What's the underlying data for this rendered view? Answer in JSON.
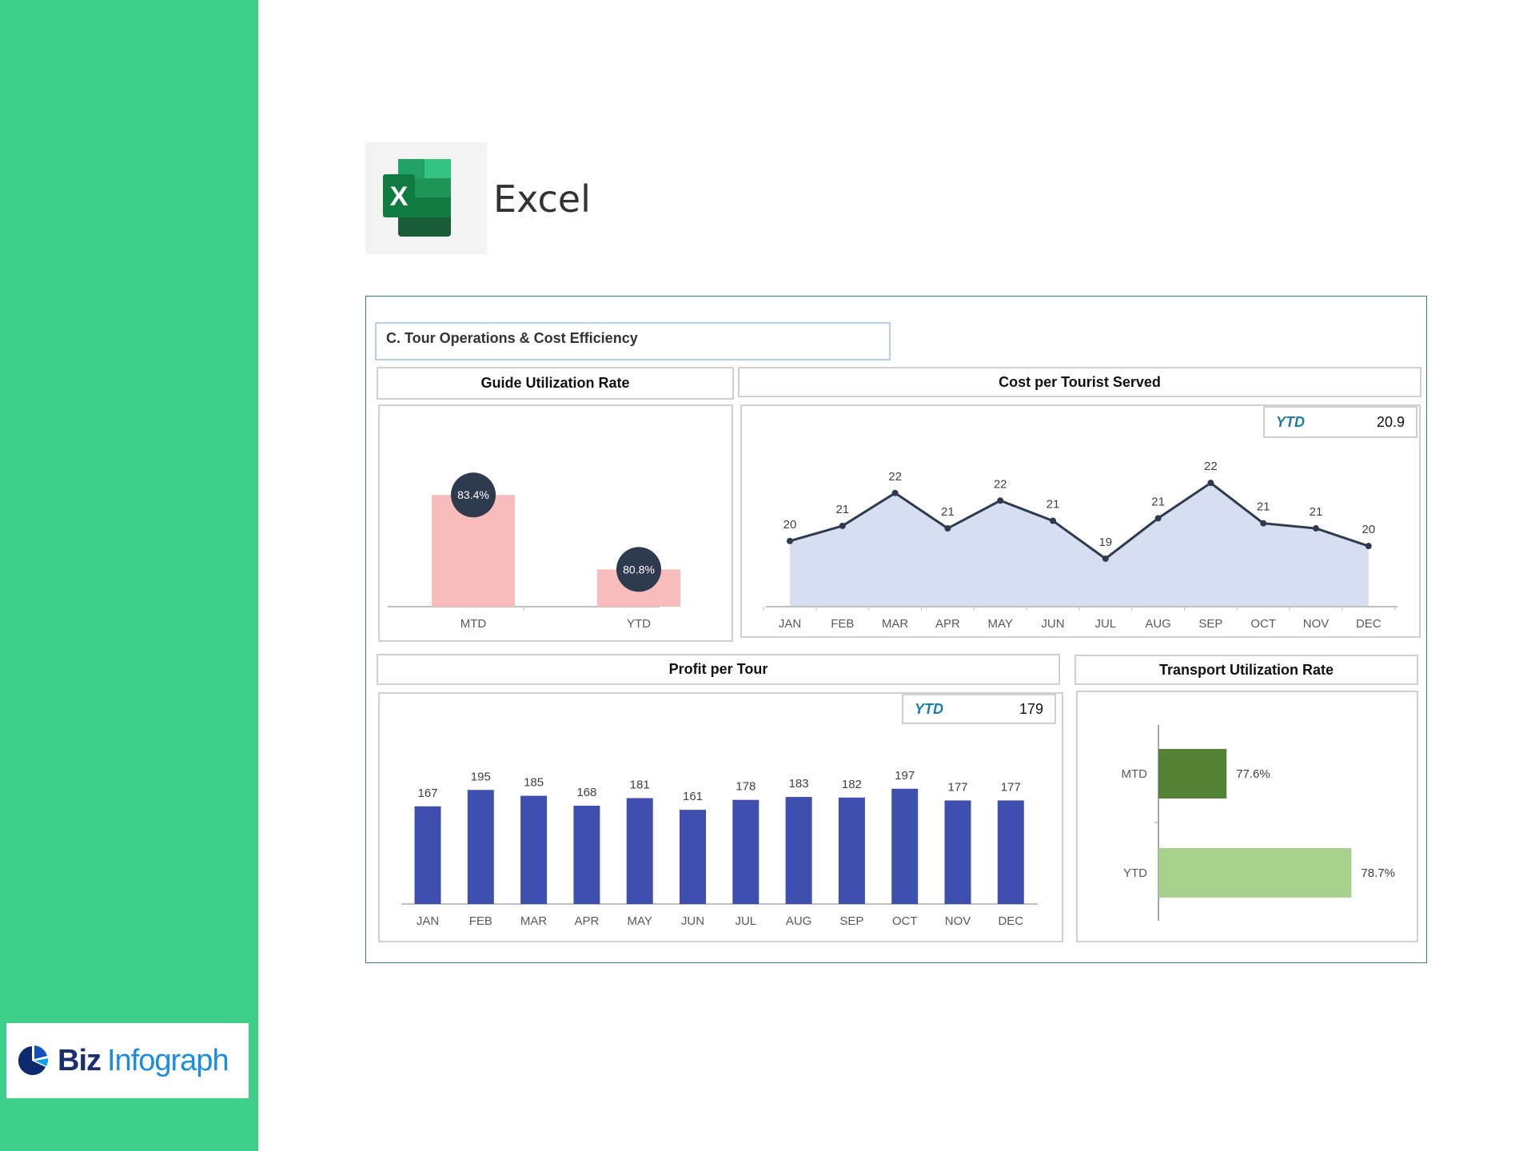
{
  "app": {
    "name": "Excel",
    "brand": "Biz Infograph",
    "brand_parts": [
      "Biz",
      "Infograph"
    ]
  },
  "colors": {
    "sidebar": "#3ecf8b",
    "guide_bar": "#f8bcbc",
    "label_bubble": "#2e3a4e",
    "line": "#2e3a4e",
    "area": "#d6dff2",
    "profit_bar": "#3f4fb0",
    "transport_mtd": "#548235",
    "transport_ytd": "#a9d18e"
  },
  "dashboard": {
    "section_title": "C. Tour Operations & Cost Efficiency"
  },
  "chart_data": [
    {
      "title": "Guide Utilization Rate",
      "type": "bar",
      "categories": [
        "MTD",
        "YTD"
      ],
      "values": [
        83.4,
        80.8
      ],
      "labels": [
        "83.4%",
        "80.8%"
      ],
      "ylim": [
        79.5,
        86
      ]
    },
    {
      "title": "Cost per Tourist Served",
      "type": "area",
      "categories": [
        "JAN",
        "FEB",
        "MAR",
        "APR",
        "MAY",
        "JUN",
        "JUL",
        "AUG",
        "SEP",
        "OCT",
        "NOV",
        "DEC"
      ],
      "values": [
        20.1,
        20.7,
        22.0,
        20.6,
        21.7,
        20.9,
        19.4,
        21.0,
        22.4,
        20.8,
        20.6,
        19.9
      ],
      "labels": [
        "20",
        "21",
        "22",
        "21",
        "22",
        "21",
        "19",
        "21",
        "22",
        "21",
        "21",
        "20"
      ],
      "ylim": [
        17.5,
        25
      ],
      "ytd_label": "YTD",
      "ytd_value": "20.9"
    },
    {
      "title": "Profit per Tour",
      "type": "bar",
      "categories": [
        "JAN",
        "FEB",
        "MAR",
        "APR",
        "MAY",
        "JUN",
        "JUL",
        "AUG",
        "SEP",
        "OCT",
        "NOV",
        "DEC"
      ],
      "values": [
        167,
        195,
        185,
        168,
        181,
        161,
        178,
        183,
        182,
        197,
        177,
        177
      ],
      "ylim": [
        0,
        250
      ],
      "ytd_label": "YTD",
      "ytd_value": "179"
    },
    {
      "title": "Transport Utilization Rate",
      "type": "bar",
      "orientation": "horizontal",
      "categories": [
        "MTD",
        "YTD"
      ],
      "values": [
        77.6,
        78.7
      ],
      "labels": [
        "77.6%",
        "78.7%"
      ],
      "xlim": [
        77,
        79
      ]
    }
  ]
}
